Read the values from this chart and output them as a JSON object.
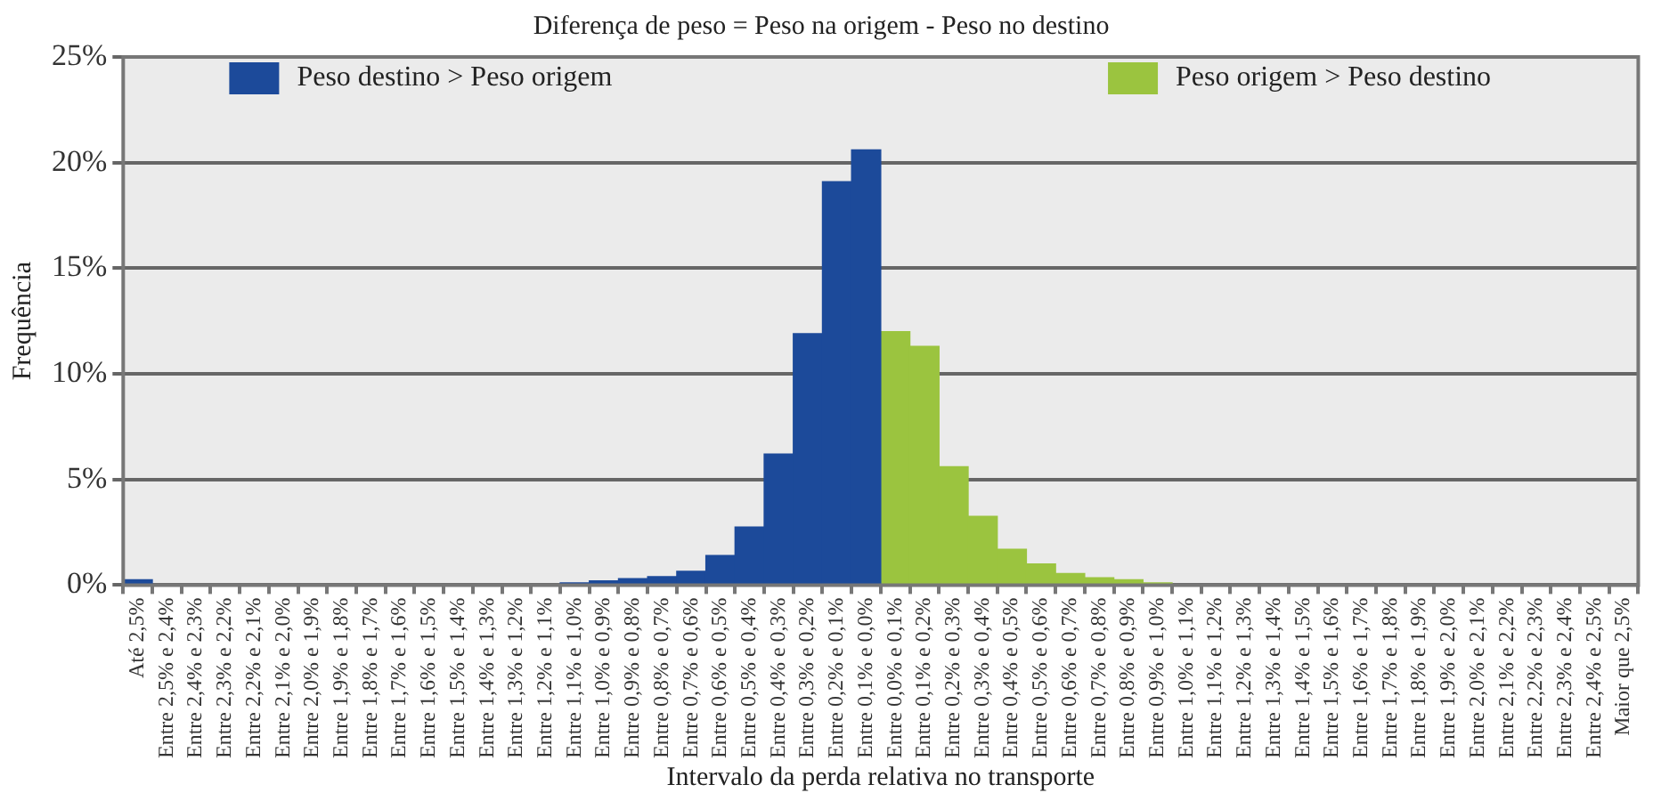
{
  "chart_data": {
    "type": "bar",
    "title": "Diferença de peso = Peso na origem - Peso no destino",
    "xlabel": "Intervalo da perda relativa no transporte",
    "ylabel": "Frequência",
    "categories": [
      "Até 2,5%",
      "Entre 2,5% e 2,4%",
      "Entre 2,4% e 2,3%",
      "Entre 2,3% e 2,2%",
      "Entre 2,2% e 2,1%",
      "Entre 2,1% e 2,0%",
      "Entre 2,0% e 1,9%",
      "Entre 1,9% e 1,8%",
      "Entre 1,8% e 1,7%",
      "Entre 1,7% e 1,6%",
      "Entre 1,6% e 1,5%",
      "Entre 1,5% e 1,4%",
      "Entre 1,4% e 1,3%",
      "Entre 1,3% e 1,2%",
      "Entre 1,2% e 1,1%",
      "Entre 1,1% e 1,0%",
      "Entre 1,0% e 0,9%",
      "Entre 0,9% e 0,8%",
      "Entre 0,8% e 0,7%",
      "Entre 0,7% e 0,6%",
      "Entre 0,6% e 0,5%",
      "Entre 0,5% e 0,4%",
      "Entre 0,4% e 0,3%",
      "Entre 0,3% e 0,2%",
      "Entre 0,2% e 0,1%",
      "Entre 0,1% e 0,0%",
      "Entre 0,0% e 0,1%",
      "Entre 0,1% e 0,2%",
      "Entre 0,2% e 0,3%",
      "Entre 0,3% e 0,4%",
      "Entre 0,4% e 0,5%",
      "Entre 0,5% e 0,6%",
      "Entre 0,6% e 0,7%",
      "Entre 0,7% e 0,8%",
      "Entre 0,8% e 0,9%",
      "Entre 0,9% e 1,0%",
      "Entre 1,0% e 1,1%",
      "Entre 1,1% e 1,2%",
      "Entre 1,2% e 1,3%",
      "Entre 1,3% e 1,4%",
      "Entre 1,4% e 1,5%",
      "Entre 1,5% e 1,6%",
      "Entre 1,6% e 1,7%",
      "Entre 1,7% e 1,8%",
      "Entre 1,8% e 1,9%",
      "Entre 1,9% e 2,0%",
      "Entre 2,0% e 2,1%",
      "Entre 2,1% e 2,2%",
      "Entre 2,2% e 2,3%",
      "Entre 2,3% e 2,4%",
      "Entre 2,4% e 2,5%",
      "Maior que 2,5%"
    ],
    "series": [
      {
        "name": "Peso destino > Peso origem",
        "color": "#1c4a9a",
        "values": [
          0.25,
          0,
          0,
          0,
          0,
          0,
          0,
          0,
          0,
          0,
          0,
          0,
          0,
          0,
          0,
          0.1,
          0.2,
          0.3,
          0.4,
          0.65,
          1.4,
          2.75,
          6.2,
          11.9,
          19.1,
          20.6,
          null,
          null,
          null,
          null,
          null,
          null,
          null,
          null,
          null,
          null,
          null,
          null,
          null,
          null,
          null,
          null,
          null,
          null,
          null,
          null,
          null,
          null,
          null,
          null,
          null,
          null
        ]
      },
      {
        "name": "Peso origem > Peso destino",
        "color": "#9bc43f",
        "values": [
          null,
          null,
          null,
          null,
          null,
          null,
          null,
          null,
          null,
          null,
          null,
          null,
          null,
          null,
          null,
          null,
          null,
          null,
          null,
          null,
          null,
          null,
          null,
          null,
          null,
          null,
          12.0,
          11.3,
          5.6,
          3.25,
          1.7,
          1.0,
          0.55,
          0.35,
          0.25,
          0.1,
          0,
          0,
          0,
          0,
          0,
          0,
          0,
          0,
          0,
          0,
          0,
          0,
          0,
          0,
          0,
          0
        ]
      }
    ],
    "ylim": [
      0,
      25
    ],
    "yticks": [
      {
        "value": 0,
        "label": "0%"
      },
      {
        "value": 5,
        "label": "5%"
      },
      {
        "value": 10,
        "label": "10%"
      },
      {
        "value": 15,
        "label": "15%"
      },
      {
        "value": 20,
        "label": "20%"
      },
      {
        "value": 25,
        "label": "25%"
      }
    ],
    "grid": "y",
    "legend": "top"
  }
}
